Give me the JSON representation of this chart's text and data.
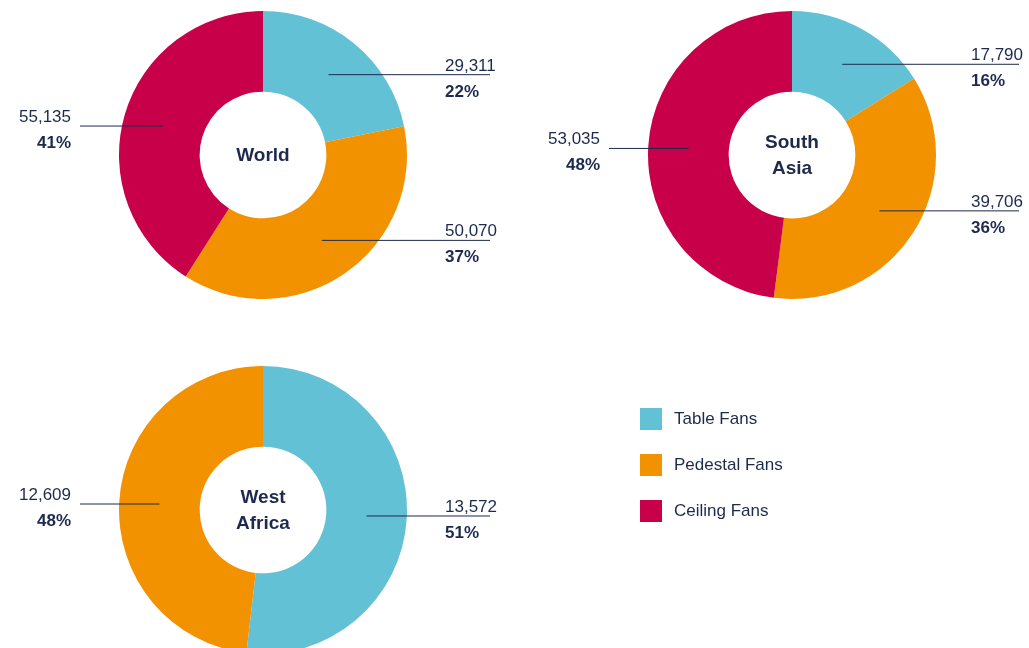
{
  "chart_data": [
    {
      "type": "donut",
      "title": "World",
      "categories": [
        "Table Fans",
        "Pedestal Fans",
        "Ceiling Fans"
      ],
      "values": [
        29311,
        50070,
        55135
      ],
      "colors": [
        "#63c1d6",
        "#f39200",
        "#c8004a"
      ],
      "value_labels": [
        "29,311\n22%",
        "50,070\n37%",
        "55,135\n41%"
      ],
      "legend": "bottom right"
    },
    {
      "type": "donut",
      "title": "South Asia",
      "categories": [
        null,
        null,
        null
      ],
      "values": [
        17790,
        39706,
        53035
      ],
      "colors": [
        "#63c1d6",
        "#f39200",
        "#c8004a"
      ],
      "value_labels": [
        "17,790\n16%",
        "39,706\n36%",
        "53,035\n48%"
      ]
    },
    {
      "type": "donut",
      "title": "West Africa",
      "categories": [
        null,
        null
      ],
      "values": [
        13572,
        12609
      ],
      "colors": [
        "#63c1d6",
        "#f39200"
      ],
      "value_labels": [
        "13,572\n51%",
        "12,609\n48%"
      ]
    }
  ]
}
